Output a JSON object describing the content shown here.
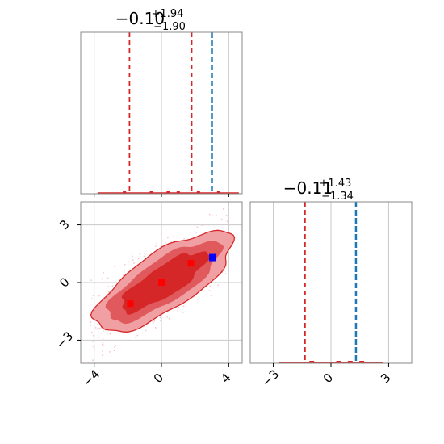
{
  "chart_data": [
    {
      "panel": "top-left",
      "type": "histogram-1d",
      "title": {
        "median": "−0.10",
        "plus": "+1.94",
        "minus": "−1.90"
      },
      "xlim": [
        -4.8,
        4.8
      ],
      "ylim": [
        0,
        1
      ],
      "quantile_lines": [
        -1.9,
        1.8
      ],
      "truth": 3.0,
      "grid": true
    },
    {
      "panel": "bottom-left",
      "type": "contour-2d",
      "xlim": [
        -4.8,
        4.8
      ],
      "ylim": [
        -4.2,
        4.2
      ],
      "xticks": [
        -4,
        0,
        4
      ],
      "xtick_labels": [
        "−4",
        "0",
        "4"
      ],
      "yticks": [
        3,
        0,
        -3
      ],
      "ytick_labels": [
        "3",
        "0",
        "−3"
      ],
      "grid": true,
      "red_markers": [
        [
          -1.85,
          -1.1
        ],
        [
          0.0,
          0.0
        ],
        [
          1.75,
          1.0
        ]
      ],
      "blue_marker": [
        3.05,
        1.3
      ]
    },
    {
      "panel": "bottom-right",
      "type": "histogram-1d",
      "title": {
        "median": "−0.11",
        "plus": "+1.43",
        "minus": "−1.34"
      },
      "xlim": [
        -4.2,
        4.2
      ],
      "ylim": [
        0,
        1
      ],
      "xticks": [
        -3,
        0,
        3
      ],
      "xtick_labels": [
        "−3",
        "0",
        "3"
      ],
      "quantile_lines": [
        -1.35,
        1.3
      ],
      "truth": 1.3,
      "grid": true
    }
  ],
  "colors": {
    "red": "#d62728",
    "fill_outer": "#f0a0a3",
    "fill_mid": "#e05a5d",
    "fill_inner": "#d62728",
    "truth_blue": "#1f77b4",
    "marker_blue": "#0000ff",
    "marker_red": "#ff0000",
    "grid": "#c8c8c8",
    "frame": "#888888"
  }
}
